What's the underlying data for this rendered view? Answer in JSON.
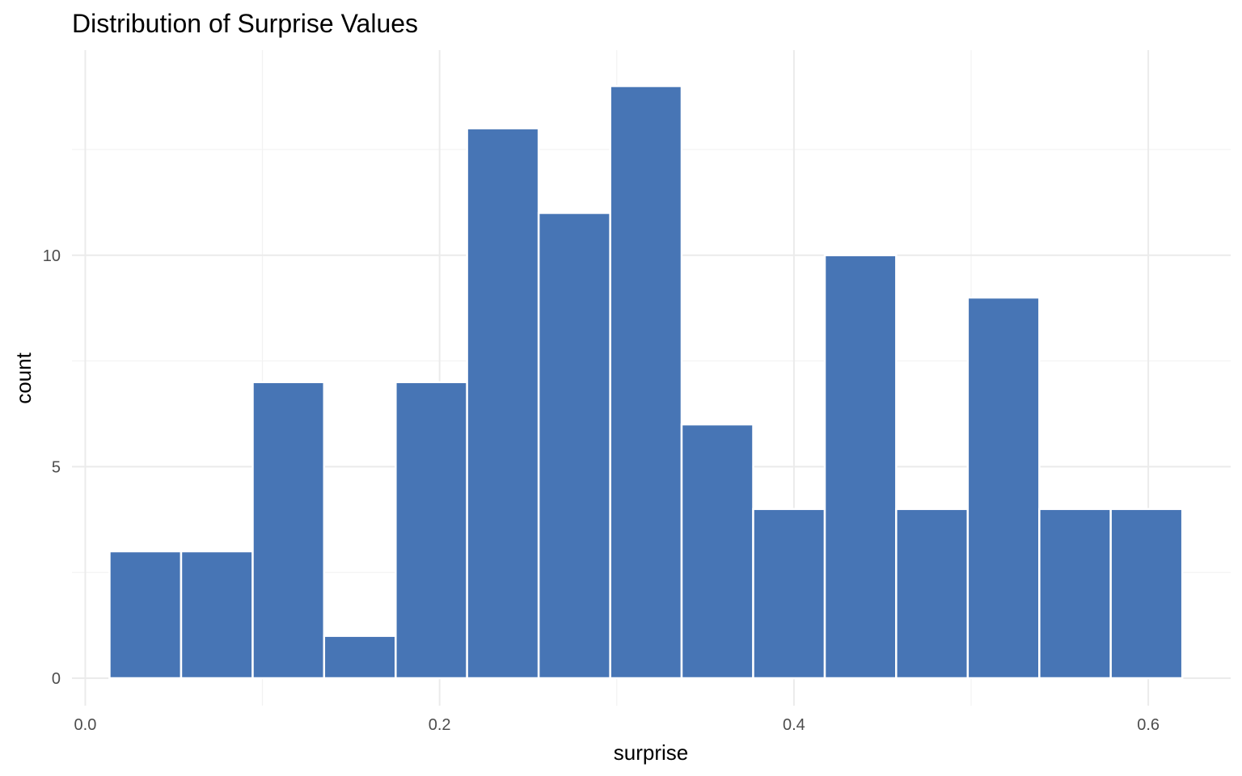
{
  "chart_data": {
    "type": "bar",
    "title": "Distribution of Surprise Values",
    "xlabel": "surprise",
    "ylabel": "count",
    "bar_color": "#4775B5",
    "xlim": [
      -0.0075,
      0.6465
    ],
    "ylim": [
      -0.65,
      14.85
    ],
    "x_ticks": [
      0.0,
      0.2,
      0.4,
      0.6
    ],
    "x_tick_labels": [
      "0.0",
      "0.2",
      "0.4",
      "0.6"
    ],
    "y_ticks": [
      0,
      5,
      10
    ],
    "y_tick_labels": [
      "0",
      "5",
      "10"
    ],
    "bins": [
      {
        "x0": 0.0137,
        "x1": 0.0541,
        "count": 3
      },
      {
        "x0": 0.0541,
        "x1": 0.0945,
        "count": 3
      },
      {
        "x0": 0.0945,
        "x1": 0.1348,
        "count": 7
      },
      {
        "x0": 0.1348,
        "x1": 0.1752,
        "count": 1
      },
      {
        "x0": 0.1752,
        "x1": 0.2155,
        "count": 7
      },
      {
        "x0": 0.2155,
        "x1": 0.2559,
        "count": 13
      },
      {
        "x0": 0.2559,
        "x1": 0.2963,
        "count": 11
      },
      {
        "x0": 0.2963,
        "x1": 0.3366,
        "count": 14
      },
      {
        "x0": 0.3366,
        "x1": 0.377,
        "count": 6
      },
      {
        "x0": 0.377,
        "x1": 0.4174,
        "count": 4
      },
      {
        "x0": 0.4174,
        "x1": 0.4577,
        "count": 10
      },
      {
        "x0": 0.4577,
        "x1": 0.4981,
        "count": 4
      },
      {
        "x0": 0.4981,
        "x1": 0.5385,
        "count": 9
      },
      {
        "x0": 0.5385,
        "x1": 0.5788,
        "count": 4
      },
      {
        "x0": 0.5788,
        "x1": 0.6192,
        "count": 4
      }
    ],
    "grid": true,
    "legend": "none"
  }
}
